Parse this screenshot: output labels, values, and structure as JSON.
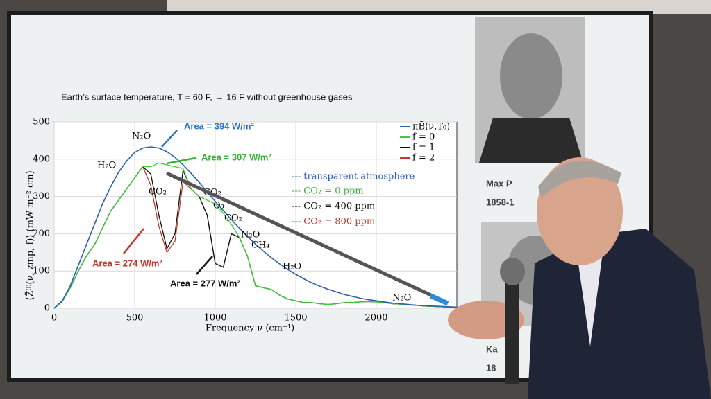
{
  "chart_data": {
    "type": "line",
    "title": "Earth’s surface temperature, T = 60 F,  →   16 F without greenhouse gases",
    "x_label": "Frequency ν (cm⁻¹)",
    "y_label": "⟨Z̃⁽ⁱ⁾(ν, zmp, f)⟩ (mW m⁻² cm)",
    "x": [
      0,
      50,
      100,
      150,
      200,
      250,
      300,
      350,
      400,
      450,
      500,
      550,
      600,
      650,
      700,
      750,
      800,
      850,
      900,
      950,
      1000,
      1050,
      1100,
      1150,
      1200,
      1250,
      1300,
      1350,
      1400,
      1450,
      1500,
      1550,
      1600,
      1650,
      1700,
      1750,
      1800,
      1850,
      1900,
      1950,
      2000,
      2050,
      2100,
      2150,
      2200,
      2250,
      2300,
      2350,
      2400,
      2450,
      2500
    ],
    "series": [
      {
        "name": "πB̃(ν,T₀)",
        "color": "#2a5fb0",
        "values": [
          0,
          20,
          60,
          115,
          170,
          225,
          280,
          325,
          365,
          395,
          418,
          430,
          433,
          430,
          420,
          405,
          385,
          362,
          338,
          312,
          287,
          262,
          238,
          215,
          193,
          172,
          153,
          135,
          119,
          104,
          91,
          79,
          68,
          59,
          51,
          44,
          37,
          32,
          27,
          23,
          20,
          17,
          14,
          12,
          10,
          8,
          7,
          6,
          5,
          4,
          3
        ]
      },
      {
        "name": "f = 0",
        "color": "#3ad03a",
        "values": [
          0,
          18,
          55,
          100,
          140,
          170,
          215,
          260,
          290,
          320,
          350,
          380,
          380,
          390,
          385,
          380,
          375,
          320,
          300,
          290,
          280,
          255,
          225,
          190,
          140,
          60,
          55,
          50,
          35,
          25,
          20,
          15,
          15,
          12,
          10,
          12,
          15,
          15,
          17,
          18,
          17,
          15,
          12,
          11,
          9,
          8,
          6,
          5,
          4,
          3,
          3
        ]
      },
      {
        "name": "f = 1",
        "color": "#111111",
        "values": [
          0,
          18,
          55,
          100,
          140,
          170,
          215,
          260,
          290,
          320,
          350,
          380,
          360,
          250,
          160,
          200,
          370,
          320,
          300,
          250,
          120,
          110,
          200,
          190,
          140,
          60,
          55,
          50,
          35,
          25,
          20,
          15,
          15,
          12,
          10,
          12,
          15,
          15,
          17,
          18,
          17,
          15,
          12,
          11,
          9,
          8,
          6,
          5,
          4,
          3,
          3
        ]
      },
      {
        "name": "f = 2",
        "color": "#c0392b",
        "values": [
          0,
          18,
          55,
          100,
          140,
          170,
          215,
          260,
          290,
          320,
          350,
          380,
          330,
          220,
          150,
          180,
          340,
          320,
          300,
          250,
          120,
          110,
          200,
          190,
          140,
          60,
          55,
          50,
          35,
          25,
          20,
          15,
          15,
          12,
          10,
          12,
          15,
          15,
          17,
          18,
          17,
          15,
          12,
          11,
          9,
          8,
          6,
          5,
          4,
          3,
          3
        ]
      }
    ],
    "xlim": [
      0,
      2500
    ],
    "ylim": [
      0,
      500
    ],
    "xticks": [
      0,
      500,
      1000,
      1500,
      2000
    ],
    "yticks": [
      0,
      100,
      200,
      300,
      400,
      500
    ],
    "grid": true,
    "annotations": [
      "Area = 394 W/m²",
      "Area = 307 W/m²",
      "Area = 274 W/m²",
      "Area = 277 W/m²",
      "N₂O",
      "H₂O",
      "CO₂",
      "CO₂",
      "O₃",
      "CO₂",
      "N₂O",
      "CH₄",
      "H₂O",
      "N₂O"
    ],
    "legend2": [
      "--- transparent atmosphere",
      "--- CO₂ = 0 ppm",
      "--- CO₂ = 400 ppm",
      "--- CO₂ = 800 ppm"
    ],
    "captions": [
      "Max P",
      "1858-1",
      "Ka",
      "18"
    ]
  }
}
